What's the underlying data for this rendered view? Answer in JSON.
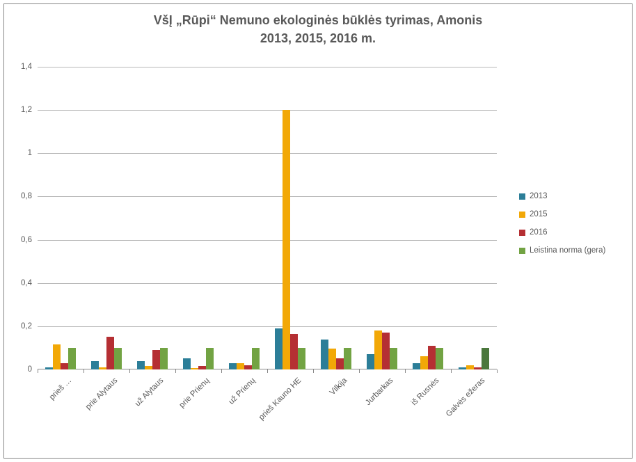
{
  "chart": {
    "type": "bar",
    "title_line1": "VšĮ „Rūpi“ Nemuno ekologinės būklės tyrimas, Amonis",
    "title_line2": "2013, 2015, 2016 m.",
    "title_fontsize": 18,
    "title_color": "#595959",
    "background_color": "#ffffff",
    "plot_border_color": "#878787",
    "grid_color": "#b7b7b7",
    "axis_label_fontsize": 11.5,
    "axis_label_color": "#595959",
    "ylim": [
      0,
      1.4
    ],
    "ytick_step": 0.2,
    "yticks": [
      {
        "v": 0,
        "label": "0"
      },
      {
        "v": 0.2,
        "label": "0,2"
      },
      {
        "v": 0.4,
        "label": "0,4"
      },
      {
        "v": 0.6,
        "label": "0,6"
      },
      {
        "v": 0.8,
        "label": "0,8"
      },
      {
        "v": 1.0,
        "label": "1"
      },
      {
        "v": 1.2,
        "label": "1,2"
      },
      {
        "v": 1.4,
        "label": "1,4"
      }
    ],
    "categories": [
      "prieš …",
      "prie Alytaus",
      "už Alytaus",
      "prie Prienų",
      "už Prienų",
      "prieš Kauno HE",
      "Vilkija",
      "Jurbarkas",
      "iš Rusnės",
      "Galvės ežeras"
    ],
    "series": [
      {
        "name": "2013",
        "color": "#2c7e98"
      },
      {
        "name": "2015",
        "color": "#f2a807"
      },
      {
        "name": "2016",
        "color": "#b52f33"
      },
      {
        "name": "Leistina norma (gera)",
        "color": "#72a343"
      }
    ],
    "norma_last_color": "#4a773c",
    "data": {
      "2013": [
        0.01,
        0.04,
        0.04,
        0.05,
        0.03,
        0.19,
        0.14,
        0.07,
        0.03,
        0.01
      ],
      "2015": [
        0.115,
        0.01,
        0.015,
        0.005,
        0.03,
        1.2,
        0.095,
        0.18,
        0.06,
        0.02
      ],
      "2016": [
        0.03,
        0.15,
        0.09,
        0.015,
        0.02,
        0.165,
        0.05,
        0.17,
        0.11,
        0.01
      ],
      "norma": [
        0.1,
        0.1,
        0.1,
        0.1,
        0.1,
        0.1,
        0.1,
        0.1,
        0.1,
        0.1
      ]
    },
    "bar_cluster_fill": 0.66,
    "legend_position": "right"
  }
}
